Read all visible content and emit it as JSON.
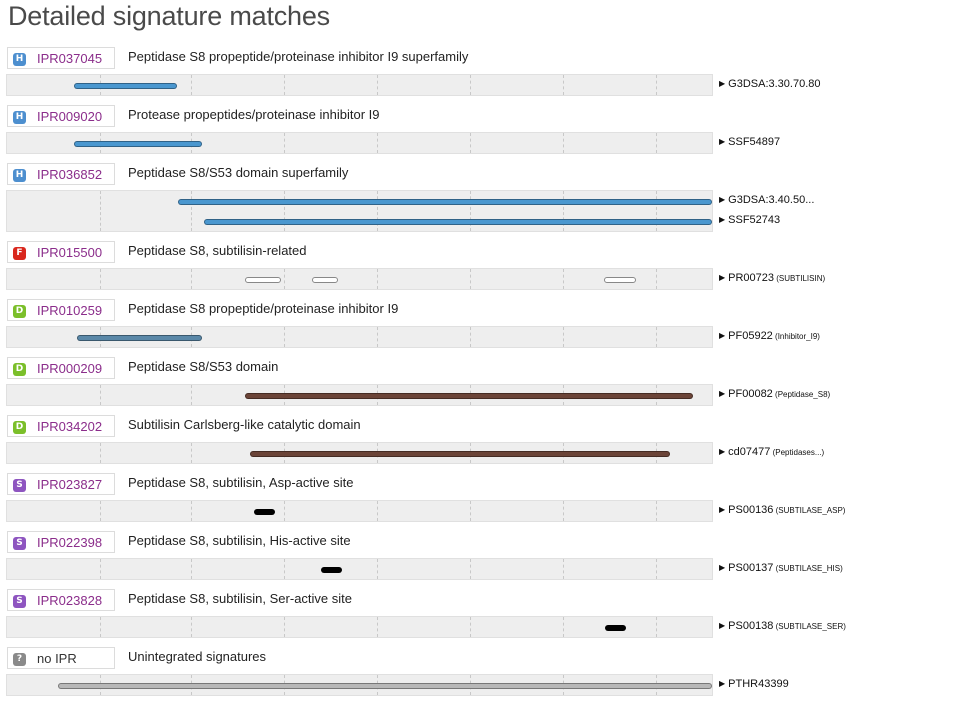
{
  "title": "Detailed signature matches",
  "colors": {
    "homologous": "#4d8fcf",
    "family": "#d9271d",
    "domain": "#7bbf2a",
    "site": "#8e55c0",
    "unintegrated": "#8a8a8a",
    "link": "#8b2d8b",
    "bar_blue": "#4a97cf",
    "bar_steel": "#5a88a8",
    "bar_brown": "#6b4438",
    "bar_black": "#000000",
    "bar_gray": "#b8b8b8",
    "bar_white": "#ffffff"
  },
  "icons": {
    "H": "homologous-superfamily-icon",
    "F": "family-icon",
    "D": "domain-icon",
    "S": "site-icon",
    "?": "unintegrated-icon"
  },
  "entries": [
    {
      "letter": "H",
      "type": "homologous",
      "accession": "IPR037045",
      "name": "Peptidase S8 propeptide/proteinase inhibitor I9 superfamily",
      "matches": [
        {
          "sig": "G3DSA:3.30.70.80",
          "sub": "",
          "bars": [
            {
              "start": 0.092,
              "end": 0.239,
              "color": "blue"
            }
          ]
        }
      ]
    },
    {
      "letter": "H",
      "type": "homologous",
      "accession": "IPR009020",
      "name": "Protease propeptides/proteinase inhibitor I9",
      "matches": [
        {
          "sig": "SSF54897",
          "sub": "",
          "bars": [
            {
              "start": 0.092,
              "end": 0.274,
              "color": "blue"
            }
          ]
        }
      ]
    },
    {
      "letter": "H",
      "type": "homologous",
      "accession": "IPR036852",
      "name": "Peptidase S8/S53 domain superfamily",
      "matches": [
        {
          "sig": "G3DSA:3.40.50...",
          "sub": "",
          "bars": [
            {
              "start": 0.24,
              "end": 1.0,
              "color": "blue"
            }
          ]
        },
        {
          "sig": "SSF52743",
          "sub": "",
          "bars": [
            {
              "start": 0.277,
              "end": 1.0,
              "color": "blue"
            }
          ]
        }
      ]
    },
    {
      "letter": "F",
      "type": "family",
      "accession": "IPR015500",
      "name": "Peptidase S8, subtilisin-related",
      "matches": [
        {
          "sig": "PR00723",
          "sub": "(SUBTILISIN)",
          "bars": [
            {
              "start": 0.335,
              "end": 0.387,
              "color": "white"
            },
            {
              "start": 0.431,
              "end": 0.468,
              "color": "white"
            },
            {
              "start": 0.846,
              "end": 0.892,
              "color": "white"
            }
          ]
        }
      ]
    },
    {
      "letter": "D",
      "type": "domain",
      "accession": "IPR010259",
      "name": "Peptidase S8 propeptide/proteinase inhibitor I9",
      "matches": [
        {
          "sig": "PF05922",
          "sub": "(Inhibitor_I9)",
          "bars": [
            {
              "start": 0.097,
              "end": 0.274,
              "color": "steel"
            }
          ]
        }
      ]
    },
    {
      "letter": "D",
      "type": "domain",
      "accession": "IPR000209",
      "name": "Peptidase S8/S53 domain",
      "matches": [
        {
          "sig": "PF00082",
          "sub": "(Peptidase_S8)",
          "bars": [
            {
              "start": 0.335,
              "end": 0.973,
              "color": "brown"
            }
          ]
        }
      ]
    },
    {
      "letter": "D",
      "type": "domain",
      "accession": "IPR034202",
      "name": "Subtilisin Carlsberg-like catalytic domain",
      "matches": [
        {
          "sig": "cd07477",
          "sub": "(Peptidases...)",
          "bars": [
            {
              "start": 0.343,
              "end": 0.94,
              "color": "brown"
            }
          ]
        }
      ]
    },
    {
      "letter": "S",
      "type": "site",
      "accession": "IPR023827",
      "name": "Peptidase S8, subtilisin, Asp-active site",
      "matches": [
        {
          "sig": "PS00136",
          "sub": "(SUBTILASE_ASP)",
          "bars": [
            {
              "start": 0.349,
              "end": 0.379,
              "color": "black"
            }
          ]
        }
      ]
    },
    {
      "letter": "S",
      "type": "site",
      "accession": "IPR022398",
      "name": "Peptidase S8, subtilisin, His-active site",
      "matches": [
        {
          "sig": "PS00137",
          "sub": "(SUBTILASE_HIS)",
          "bars": [
            {
              "start": 0.444,
              "end": 0.474,
              "color": "black"
            }
          ]
        }
      ]
    },
    {
      "letter": "S",
      "type": "site",
      "accession": "IPR023828",
      "name": "Peptidase S8, subtilisin, Ser-active site",
      "matches": [
        {
          "sig": "PS00138",
          "sub": "(SUBTILASE_SER)",
          "bars": [
            {
              "start": 0.848,
              "end": 0.878,
              "color": "black"
            }
          ]
        }
      ]
    },
    {
      "letter": "?",
      "type": "unintegrated",
      "accession": "no IPR",
      "name": "Unintegrated signatures",
      "matches": [
        {
          "sig": "PTHR43399",
          "sub": "",
          "bars": [
            {
              "start": 0.069,
              "end": 1.0,
              "color": "gray"
            }
          ]
        }
      ]
    }
  ]
}
